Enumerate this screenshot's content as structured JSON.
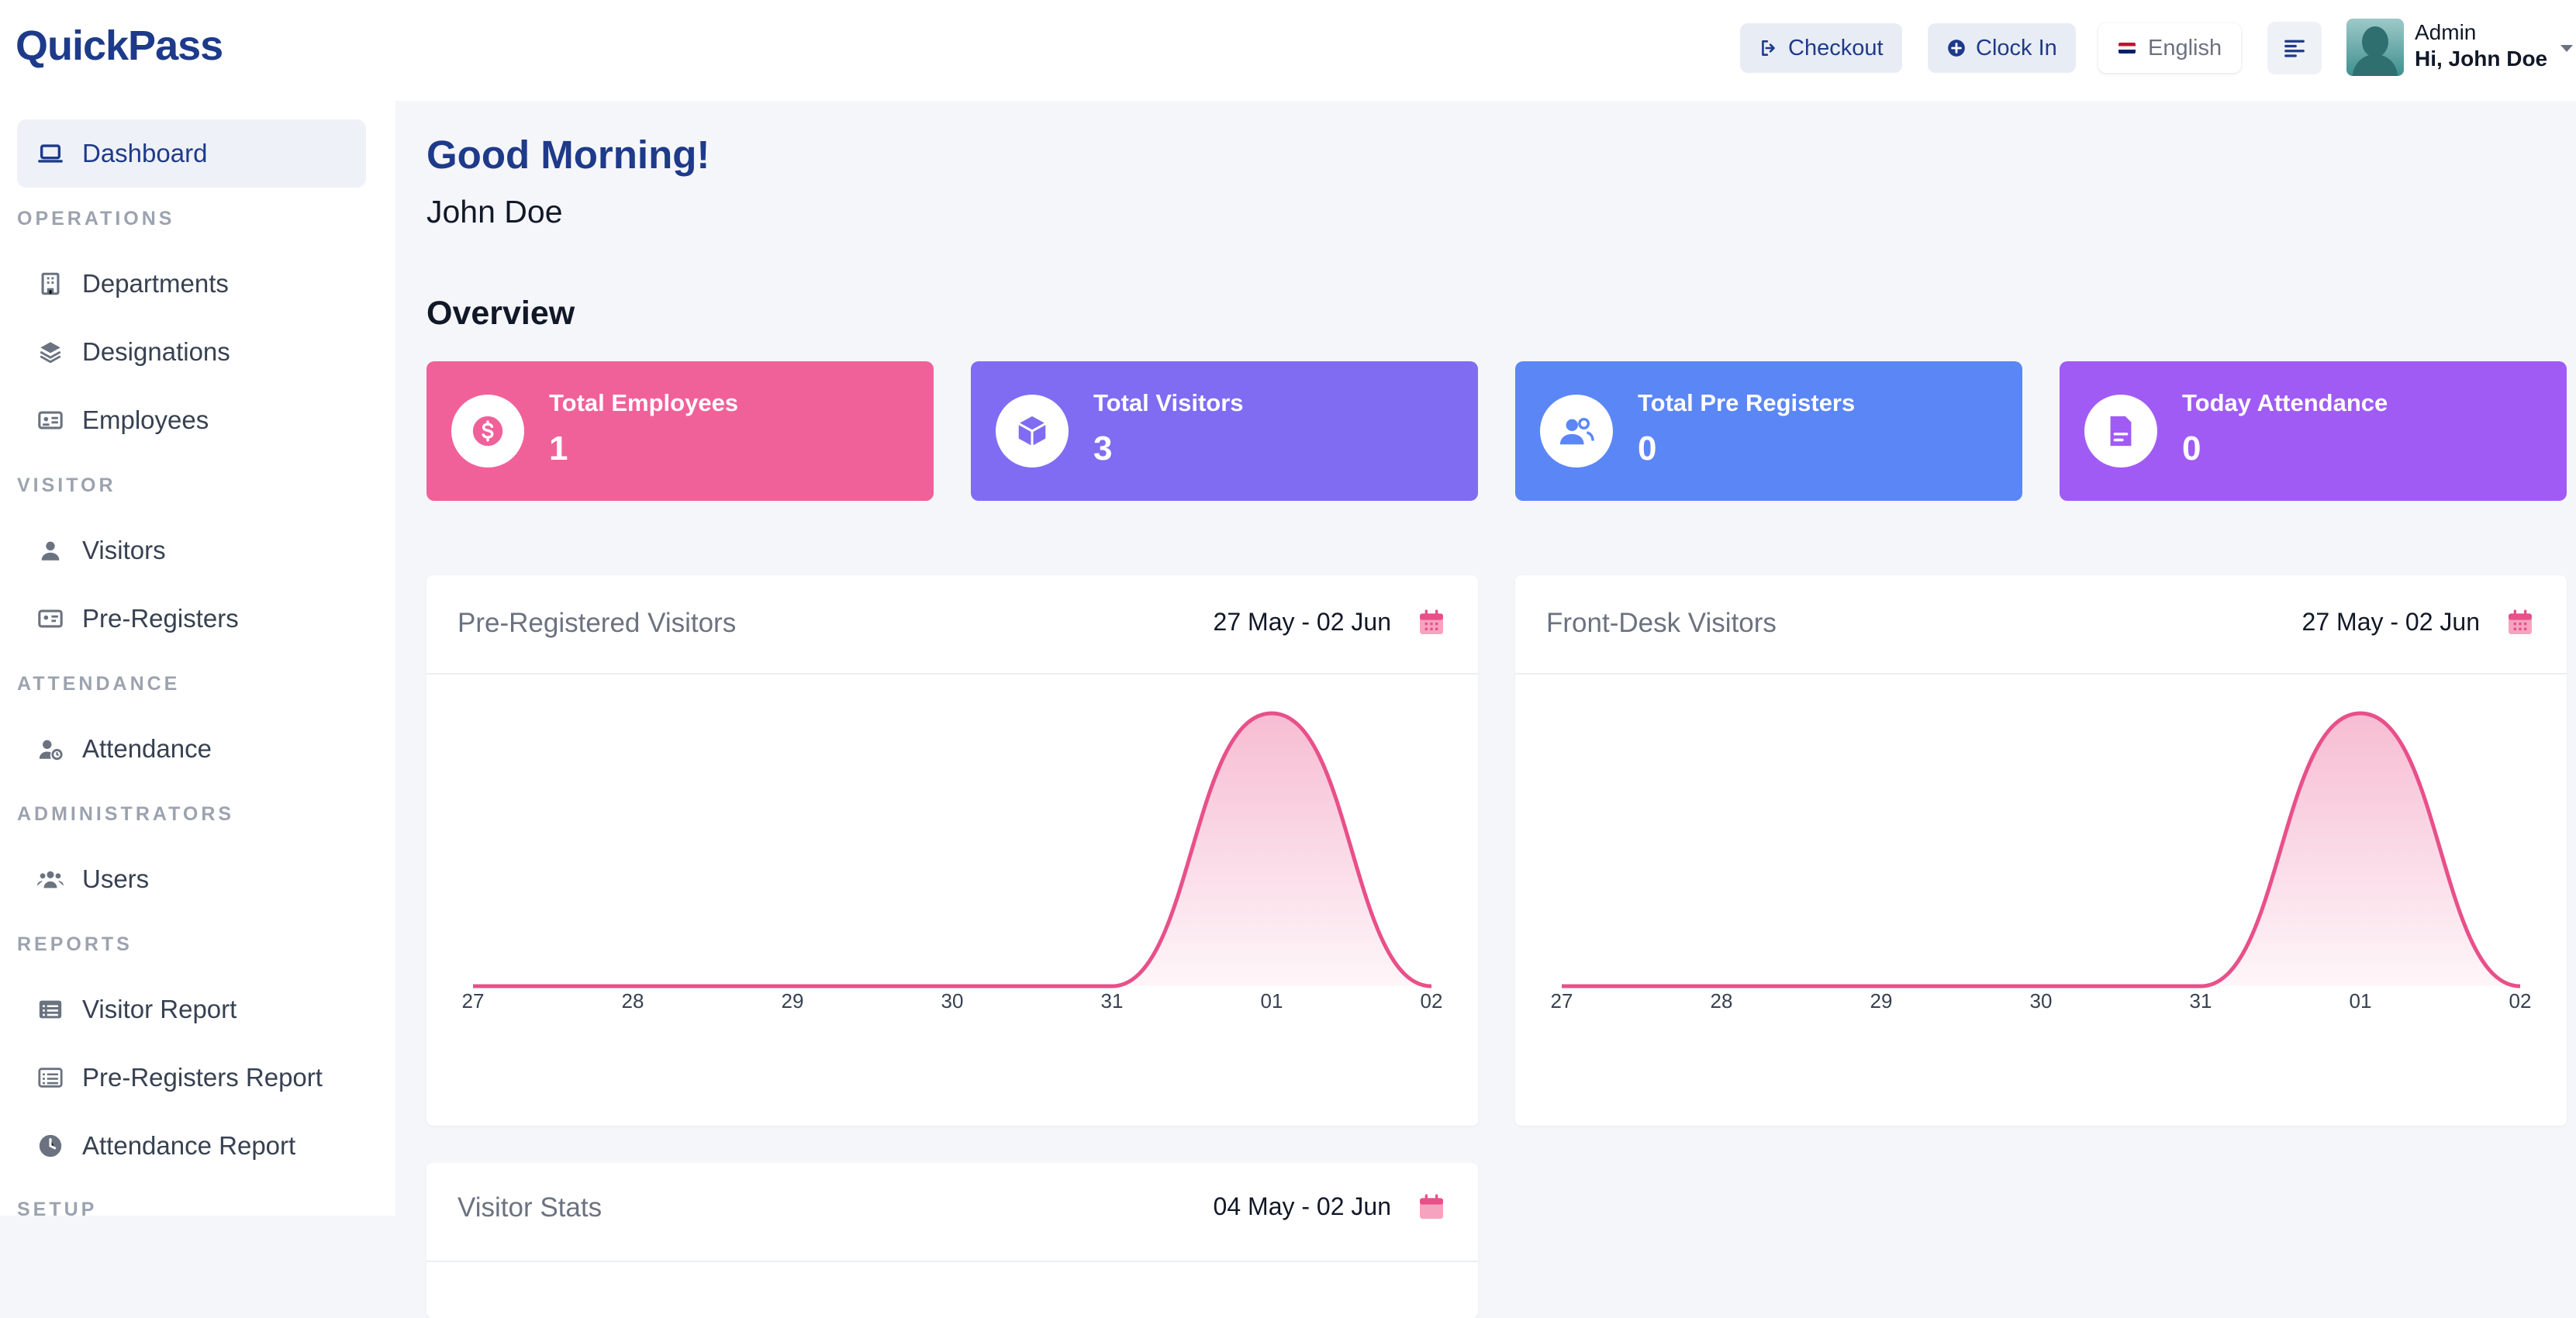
{
  "app": {
    "logo": "QuickPass"
  },
  "topbar": {
    "checkout": "Checkout",
    "clock_in": "Clock In",
    "language": "English",
    "user_role": "Admin",
    "user_greeting": "Hi, John Doe"
  },
  "sidebar": {
    "dashboard": "Dashboard",
    "sections": {
      "operations": "OPERATIONS",
      "visitor": "VISITOR",
      "attendance": "ATTENDANCE",
      "administrators": "ADMINISTRATORS",
      "reports": "REPORTS",
      "setup": "SETUP"
    },
    "items": {
      "departments": "Departments",
      "designations": "Designations",
      "employees": "Employees",
      "visitors": "Visitors",
      "pre_registers": "Pre-Registers",
      "attendance": "Attendance",
      "users": "Users",
      "visitor_report": "Visitor Report",
      "pre_registers_report": "Pre-Registers Report",
      "attendance_report": "Attendance Report"
    }
  },
  "main": {
    "greeting": "Good Morning!",
    "name": "John Doe",
    "overview": "Overview",
    "stats": [
      {
        "label": "Total Employees",
        "value": "1",
        "color": "#f0619a",
        "icon": "dollar-icon"
      },
      {
        "label": "Total Visitors",
        "value": "3",
        "color": "#7f6cf2",
        "icon": "cube-icon"
      },
      {
        "label": "Total Pre Registers",
        "value": "0",
        "color": "#5b86f5",
        "icon": "users-icon"
      },
      {
        "label": "Today Attendance",
        "value": "0",
        "color": "#a05bf5",
        "icon": "document-icon"
      }
    ],
    "cards": {
      "pre_registered": {
        "title": "Pre-Registered Visitors",
        "range": "27 May - 02 Jun"
      },
      "front_desk": {
        "title": "Front-Desk Visitors",
        "range": "27 May - 02 Jun"
      },
      "visitor_stats": {
        "title": "Visitor Stats",
        "range": "04 May - 02 Jun"
      }
    }
  },
  "chart_data": [
    {
      "type": "area",
      "categories": [
        "27",
        "28",
        "29",
        "30",
        "31",
        "01",
        "02"
      ],
      "series": [
        {
          "values": [
            0,
            0,
            0,
            0,
            0,
            1,
            0
          ]
        }
      ],
      "color": "#e8508a"
    },
    {
      "type": "area",
      "categories": [
        "27",
        "28",
        "29",
        "30",
        "31",
        "01",
        "02"
      ],
      "series": [
        {
          "values": [
            0,
            0,
            0,
            0,
            0,
            1,
            0
          ]
        }
      ],
      "color": "#e8508a"
    }
  ]
}
